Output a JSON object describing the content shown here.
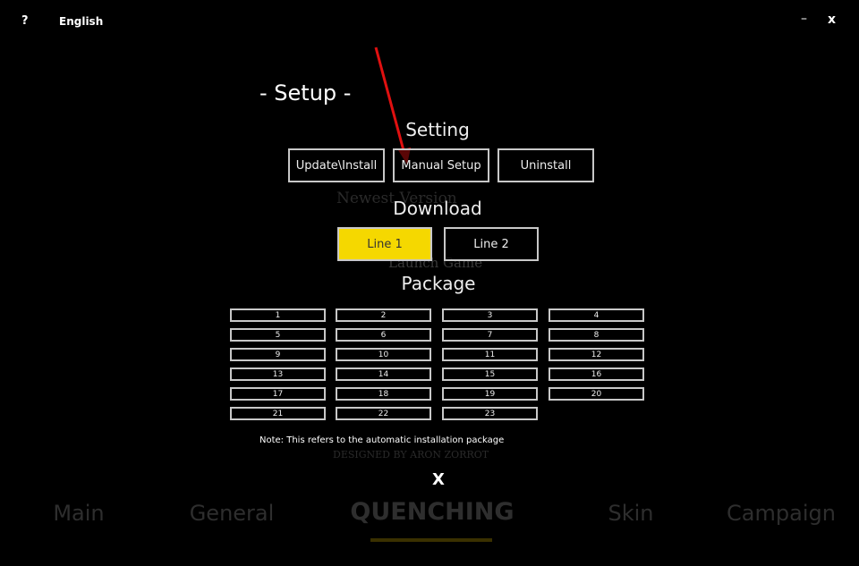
{
  "titlebar": {
    "help": "?",
    "language": "English",
    "minimize": "–",
    "close": "x"
  },
  "background": {
    "version_label": "Newest Version",
    "launch": "Launch Game",
    "credit": "DESIGNED BY ARON ZORROT"
  },
  "setup": {
    "title": "- Setup -",
    "setting": {
      "heading": "Setting",
      "buttons": [
        "Update\\Install",
        "Manual Setup",
        "Uninstall"
      ]
    },
    "download": {
      "heading": "Download",
      "buttons": [
        "Line 1",
        "Line 2"
      ]
    },
    "package": {
      "heading": "Package",
      "buttons": [
        "1",
        "2",
        "3",
        "4",
        "5",
        "6",
        "7",
        "8",
        "9",
        "10",
        "11",
        "12",
        "13",
        "14",
        "15",
        "16",
        "17",
        "18",
        "19",
        "20",
        "21",
        "22",
        "23"
      ]
    },
    "note": "Note: This refers to the automatic installation package",
    "close": "X"
  },
  "tabs": [
    "Main",
    "General",
    "QUENCHING",
    "Skin",
    "Campaign"
  ]
}
